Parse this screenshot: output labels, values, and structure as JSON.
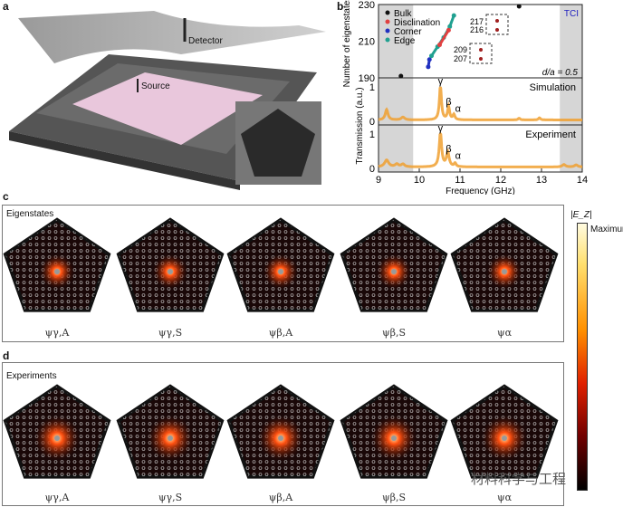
{
  "panel_labels": {
    "a": "a",
    "b": "b",
    "c": "c",
    "d": "d"
  },
  "panel_a": {
    "detector": "Detector",
    "source": "Source"
  },
  "panel_c": {
    "title": "Eigenstates",
    "states": [
      "ψγ,A",
      "ψγ,S",
      "ψβ,A",
      "ψβ,S",
      "ψα"
    ]
  },
  "panel_d": {
    "title": "Experiments",
    "states": [
      "ψγ,A",
      "ψγ,S",
      "ψβ,A",
      "ψβ,S",
      "ψα"
    ]
  },
  "colorbar": {
    "label": "|E_Z|",
    "max_label": "Maximum"
  },
  "watermark": "材料科学与工程",
  "chart_data": [
    {
      "type": "scatter",
      "ylabel": "Number of eigenstates",
      "ylim": [
        190,
        230
      ],
      "yticks": [
        "190",
        "210",
        "230"
      ],
      "legend": [
        "Bulk",
        "Disclination",
        "Corner",
        "Edge"
      ],
      "legend_colors": [
        "#111111",
        "#e04040",
        "#2030c0",
        "#20a090"
      ],
      "annotation": "d/a = 0.5",
      "tag": "TCI",
      "inset_labels": [
        "217",
        "216",
        "209",
        "207"
      ],
      "series": [
        {
          "name": "Corner",
          "x": [
            10.22,
            10.25
          ],
          "y": [
            196,
            200
          ]
        },
        {
          "name": "Edge",
          "x": [
            10.3,
            10.45,
            10.6,
            10.75,
            10.85
          ],
          "y": [
            202,
            207,
            212,
            218,
            224
          ]
        },
        {
          "name": "Disclination",
          "x": [
            10.5,
            10.72
          ],
          "y": [
            208,
            216
          ]
        },
        {
          "name": "Bulk",
          "x": [
            9.55,
            12.45
          ],
          "y": [
            191,
            229
          ]
        }
      ]
    },
    {
      "type": "line",
      "label": "Simulation",
      "xlim": [
        9,
        14
      ],
      "ylim": [
        0,
        1
      ],
      "yticks": [
        "0",
        "1"
      ],
      "peaks": [
        {
          "x": 9.2,
          "h": 0.3,
          "w": 0.04
        },
        {
          "x": 9.6,
          "h": 0.08,
          "w": 0.05
        },
        {
          "x": 10.52,
          "h": 1.0,
          "w": 0.03
        },
        {
          "x": 10.72,
          "h": 0.38,
          "w": 0.03
        },
        {
          "x": 10.85,
          "h": 0.15,
          "w": 0.03
        },
        {
          "x": 12.45,
          "h": 0.05,
          "w": 0.03
        },
        {
          "x": 12.95,
          "h": 0.06,
          "w": 0.03
        }
      ],
      "peak_labels": [
        "γ",
        "β",
        "α"
      ]
    },
    {
      "type": "line",
      "label": "Experiment",
      "xlim": [
        9,
        14
      ],
      "ylim": [
        0,
        1
      ],
      "yticks": [
        "0",
        "1"
      ],
      "peaks": [
        {
          "x": 9.2,
          "h": 0.2,
          "w": 0.06
        },
        {
          "x": 9.45,
          "h": 0.08,
          "w": 0.05
        },
        {
          "x": 9.6,
          "h": 0.08,
          "w": 0.05
        },
        {
          "x": 10.52,
          "h": 1.0,
          "w": 0.035
        },
        {
          "x": 10.7,
          "h": 0.42,
          "w": 0.04
        },
        {
          "x": 10.88,
          "h": 0.1,
          "w": 0.03
        },
        {
          "x": 13.55,
          "h": 0.07,
          "w": 0.05
        },
        {
          "x": 13.85,
          "h": 0.06,
          "w": 0.05
        }
      ],
      "peak_labels": [
        "γ",
        "β",
        "α"
      ],
      "xlabel": "Frequency (GHz)",
      "xticks": [
        "9",
        "10",
        "11",
        "12",
        "13",
        "14"
      ],
      "ylabel": "Transmission (a.u.)"
    }
  ]
}
